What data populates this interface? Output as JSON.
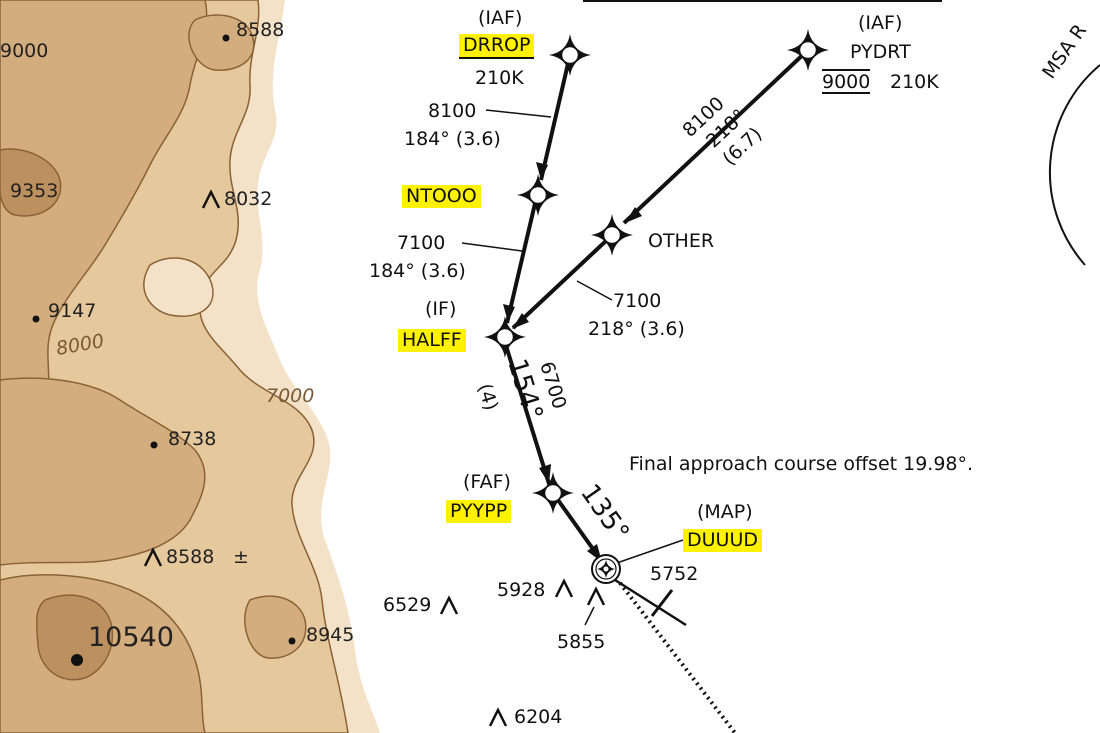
{
  "terrain": {
    "contour_labels": [
      "7000",
      "8000"
    ],
    "elevations": {
      "e_9000": "9000",
      "e_8588_top": "8588",
      "e_9353": "9353",
      "e_9147": "9147",
      "e_8738": "8738",
      "e_8945": "8945",
      "e_10540": "10540"
    },
    "obstacles": {
      "o_8032": "8032",
      "o_8588": "8588",
      "o_8588_suffix": "±",
      "o_6529": "6529",
      "o_5928": "5928",
      "o_5855": "5855",
      "o_6204": "6204",
      "o_5752": "5752"
    },
    "colors": {
      "low": "#f3e2c8",
      "mid": "#e6c89d",
      "high": "#d4ad7e",
      "peak": "#bd915f",
      "contour": "#8a6236"
    }
  },
  "fixes": {
    "drrop": {
      "role": "(IAF)",
      "name": "DRROP",
      "speed": "210K"
    },
    "pydrt": {
      "role": "(IAF)",
      "name": "PYDRT",
      "altitude": "9000",
      "speed": "210K"
    },
    "ntooo": {
      "name": "NTOOO"
    },
    "other": {
      "name": "OTHER"
    },
    "halff": {
      "role": "(IF)",
      "name": "HALFF"
    },
    "pyypp": {
      "role": "(FAF)",
      "name": "PYYPP"
    },
    "duuud": {
      "role": "(MAP)",
      "name": "DUUUD"
    }
  },
  "legs": {
    "drrop_ntooo": {
      "altitude": "8100",
      "course": "184° (3.6)"
    },
    "ntooo_halff": {
      "altitude": "7100",
      "course": "184° (3.6)"
    },
    "pydrt_other": {
      "altitude": "8100",
      "course": "218°",
      "distance": "(6.7)"
    },
    "other_halff": {
      "altitude": "7100",
      "course": "218° (3.6)"
    },
    "halff_pyypp": {
      "altitude": "6700",
      "course": "154°",
      "distance": "(4)"
    },
    "final": {
      "course": "135°"
    }
  },
  "notes": {
    "offset": "Final approach course offset 19.98°."
  },
  "msa": {
    "label": "MSA R"
  },
  "highlight_color": "#fff200"
}
